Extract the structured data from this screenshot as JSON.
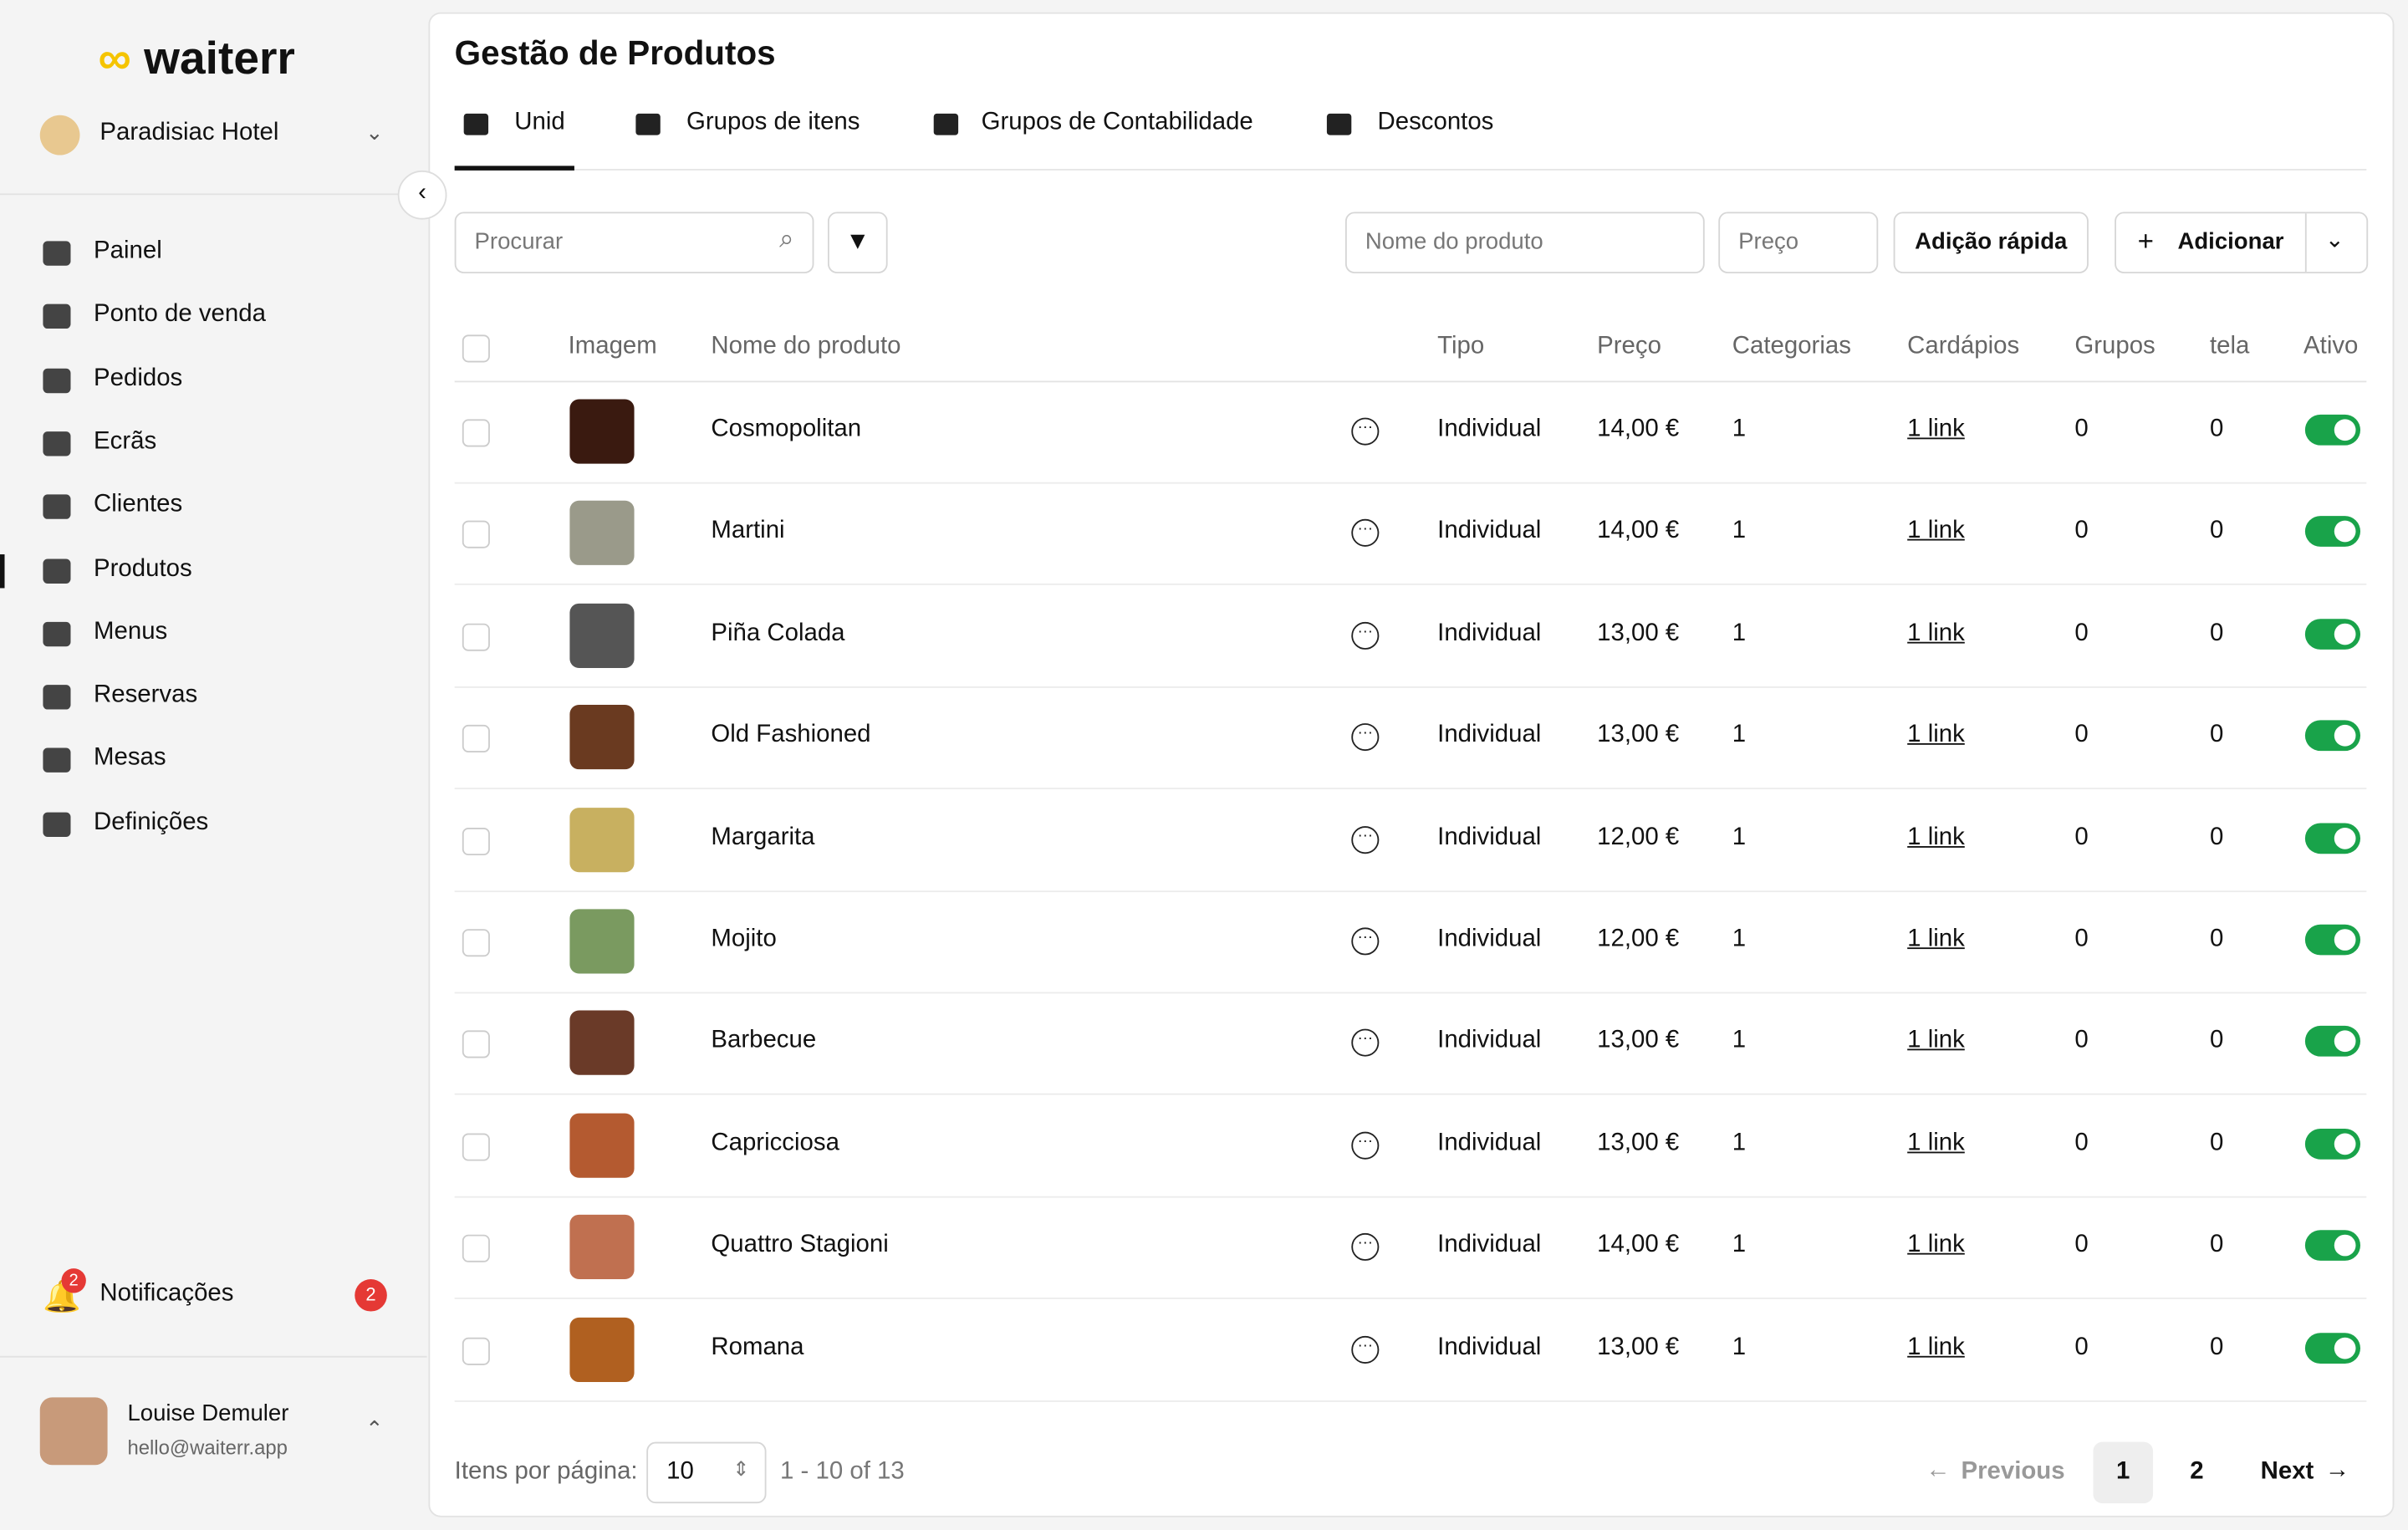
{
  "brand": "waiterr",
  "venue": "Paradisiac Hotel",
  "nav": [
    "Painel",
    "Ponto de venda",
    "Pedidos",
    "Ecrãs",
    "Clientes",
    "Produtos",
    "Menus",
    "Reservas",
    "Mesas",
    "Definições"
  ],
  "notifications": {
    "label": "Notificações",
    "count": "2"
  },
  "user": {
    "name": "Louise Demuler",
    "email": "hello@waiterr.app"
  },
  "header": {
    "title": "Gestão de Produtos"
  },
  "tabs": [
    "Unid",
    "Grupos de itens",
    "Grupos de Contabilidade",
    "Descontos"
  ],
  "toolbar": {
    "search": "Procurar",
    "name_placeholder": "Nome do produto",
    "price_placeholder": "Preço",
    "quick_add": "Adição rápida",
    "add": "Adicionar"
  },
  "table": {
    "columns": [
      "Imagem",
      "Nome do produto",
      "Tipo",
      "Preço",
      "Categorias",
      "Cardápios",
      "Grupos",
      "tela",
      "Ativo"
    ],
    "rows": [
      [
        "Cosmopolitan",
        "Individual",
        "14,00 €",
        "1",
        "1 link",
        "0",
        "0"
      ],
      [
        "Martini",
        "Individual",
        "14,00 €",
        "1",
        "1 link",
        "0",
        "0"
      ],
      [
        "Piña Colada",
        "Individual",
        "13,00 €",
        "1",
        "1 link",
        "0",
        "0"
      ],
      [
        "Old Fashioned",
        "Individual",
        "13,00 €",
        "1",
        "1 link",
        "0",
        "0"
      ],
      [
        "Margarita",
        "Individual",
        "12,00 €",
        "1",
        "1 link",
        "0",
        "0"
      ],
      [
        "Mojito",
        "Individual",
        "12,00 €",
        "1",
        "1 link",
        "0",
        "0"
      ],
      [
        "Barbecue",
        "Individual",
        "13,00 €",
        "1",
        "1 link",
        "0",
        "0"
      ],
      [
        "Capricciosa",
        "Individual",
        "13,00 €",
        "1",
        "1 link",
        "0",
        "0"
      ],
      [
        "Quattro Stagioni",
        "Individual",
        "14,00 €",
        "1",
        "1 link",
        "0",
        "0"
      ],
      [
        "Romana",
        "Individual",
        "13,00 €",
        "1",
        "1 link",
        "0",
        "0"
      ]
    ]
  },
  "pagination": {
    "per_page_label": "Itens por página:",
    "per_page": "10",
    "range": "1 - 10 of 13",
    "previous": "Previous",
    "pages": [
      "1",
      "2"
    ],
    "next": "Next"
  }
}
